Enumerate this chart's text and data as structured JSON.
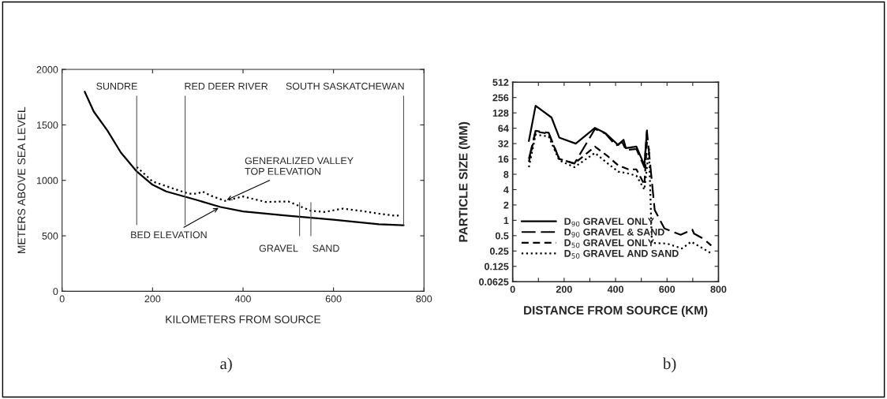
{
  "chart_data": [
    {
      "type": "line",
      "xlabel": "KILOMETERS FROM SOURCE",
      "ylabel": "METERS ABOVE SEA LEVEL",
      "xlim": [
        0,
        800
      ],
      "ylim": [
        0,
        2000
      ],
      "xticks": [
        0,
        200,
        400,
        600,
        800
      ],
      "yticks": [
        0,
        500,
        1000,
        1500,
        2000
      ],
      "grid": false,
      "series": [
        {
          "name": "BED ELEVATION",
          "color": "#000000",
          "line_style": "solid",
          "x": [
            50,
            70,
            100,
            130,
            165,
            200,
            230,
            300,
            350,
            400,
            500,
            600,
            700,
            755
          ],
          "values": [
            1800,
            1620,
            1450,
            1250,
            1080,
            960,
            900,
            820,
            760,
            720,
            680,
            645,
            605,
            595
          ]
        },
        {
          "name": "GENERALIZED VALLEY\nTOP ELEVATION",
          "color": "#000000",
          "line_style": "dotted",
          "x": [
            165,
            200,
            250,
            280,
            300,
            310,
            330,
            360,
            400,
            450,
            500,
            550,
            580,
            620,
            660,
            700,
            740,
            750
          ],
          "values": [
            1120,
            990,
            920,
            880,
            880,
            900,
            860,
            815,
            855,
            805,
            810,
            725,
            715,
            745,
            725,
            700,
            680,
            690
          ]
        }
      ],
      "ref_lines": [
        {
          "axis": "x",
          "value": 165,
          "label": "SUNDRE"
        },
        {
          "axis": "x",
          "value": 272,
          "label": "RED DEER RIVER"
        },
        {
          "axis": "x",
          "value": 755,
          "label": "SOUTH SASKATCHEWAN"
        },
        {
          "axis": "x",
          "value": 525,
          "label": "GRAVEL"
        },
        {
          "axis": "x",
          "value": 550,
          "label": "SAND"
        }
      ],
      "annotations": [
        "a)"
      ]
    },
    {
      "type": "line",
      "xlabel": "DISTANCE FROM SOURCE (KM)",
      "ylabel": "PARTICLE SIZE (MM)",
      "log": "y",
      "xlim": [
        0,
        800
      ],
      "ylim": [
        0.0625,
        512
      ],
      "xticks": [
        0,
        {
          "value": 100,
          "label": null
        },
        200,
        {
          "value": 300,
          "label": null
        },
        400,
        {
          "value": 500,
          "label": null
        },
        600,
        {
          "value": 700,
          "label": null
        },
        800
      ],
      "yticks": [
        0.0625,
        0.125,
        0.25,
        0.5,
        1,
        2,
        4,
        8,
        16,
        32,
        64,
        128,
        256,
        512
      ],
      "grid": false,
      "legend": "bottom left",
      "series": [
        {
          "name": "D$_{90}$ GRAVEL ONLY",
          "color": "#000000",
          "line_style": "solid",
          "x": [
            63,
            89,
            151,
            181,
            245,
            320,
            361,
            410,
            431,
            440,
            481,
            512,
            522
          ],
          "values": [
            36,
            176,
            104,
            42,
            32,
            65,
            51,
            30,
            38,
            26,
            28,
            12,
            58
          ]
        },
        {
          "name": "D$_{90}$ GRAVEL & SAND",
          "color": "#000000",
          "line_style": "dashed",
          "x": [
            63,
            89,
            140,
            181,
            240,
            320,
            361,
            402,
            425,
            440,
            481,
            512,
            522,
            552,
            590,
            653,
            698,
            705,
            743,
            772
          ],
          "values": [
            16,
            57,
            52,
            16,
            13,
            62,
            50,
            29,
            35,
            24,
            25,
            11,
            55,
            1.6,
            0.69,
            0.52,
            0.66,
            0.55,
            0.43,
            0.32
          ]
        },
        {
          "name": "D$_{50}$ GRAVEL ONLY",
          "color": "#000000",
          "line_style": "dashed",
          "x": [
            63,
            89,
            140,
            181,
            240,
            320,
            370,
            410,
            450,
            481,
            512,
            522
          ],
          "values": [
            14,
            55,
            50,
            16,
            13,
            28,
            18,
            12,
            10,
            10,
            5,
            35
          ]
        },
        {
          "name": "D$_{50}$ GRAVEL AND SAND",
          "color": "#000000",
          "line_style": "dotted",
          "x": [
            63,
            89,
            140,
            181,
            240,
            320,
            370,
            410,
            440,
            481,
            512,
            530,
            541,
            600,
            658,
            694,
            740,
            775
          ],
          "values": [
            11,
            48,
            44,
            15,
            11,
            21,
            13,
            9,
            8.5,
            7.5,
            4,
            25,
            0.36,
            0.35,
            0.28,
            0.38,
            0.28,
            0.22
          ]
        }
      ],
      "annotations": [
        "b)"
      ]
    }
  ]
}
